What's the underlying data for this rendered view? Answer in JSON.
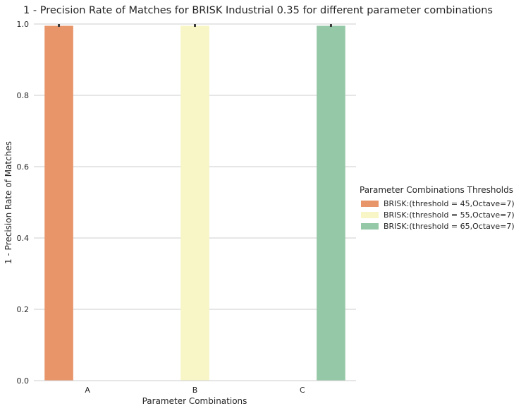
{
  "chart_data": {
    "type": "bar",
    "title": "1 - Precision Rate of Matches for BRISK Industrial 0.35 for different parameter combinations",
    "xlabel": "Parameter Combinations",
    "ylabel": "1 - Precision Rate of Matches",
    "categories": [
      "A",
      "B",
      "C"
    ],
    "ylim": [
      0,
      1.0
    ],
    "yticks": [
      "0.0",
      "0.2",
      "0.4",
      "0.6",
      "0.8",
      "1.0"
    ],
    "grid": true,
    "legend_placement": "center-right",
    "legend_title": "Parameter Combinations Thresholds",
    "series": [
      {
        "name": "BRISK:(threshold = 45,Octave=7)",
        "values": [
          0.995,
          null,
          null
        ],
        "color": "#e8956a"
      },
      {
        "name": "BRISK:(threshold = 55,Octave=7)",
        "values": [
          null,
          0.995,
          null
        ],
        "color": "#f8f6c6"
      },
      {
        "name": "BRISK:(threshold = 65,Octave=7)",
        "values": [
          null,
          null,
          0.995
        ],
        "color": "#95c8a6"
      }
    ]
  }
}
